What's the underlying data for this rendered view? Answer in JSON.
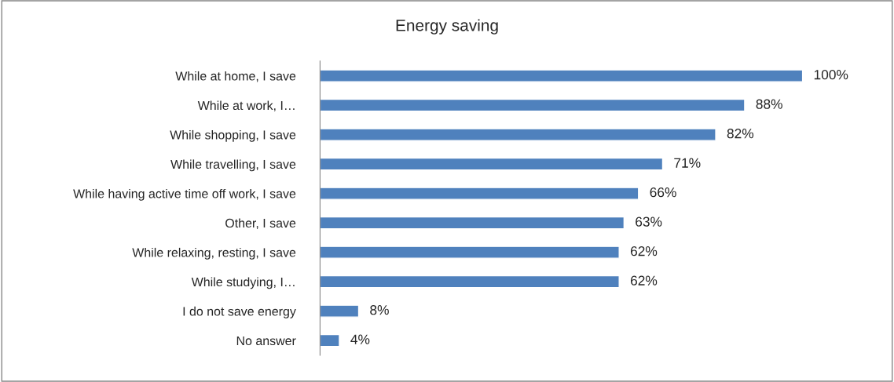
{
  "chart_data": {
    "type": "bar",
    "orientation": "horizontal",
    "title": "Energy saving",
    "categories": [
      "While at home, I save",
      "While at work, I…",
      "While shopping, I save",
      "While travelling, I save",
      "While having active time off work, I save",
      "Other, I save",
      "While relaxing, resting, I save",
      "While studying, I…",
      "I do not save energy",
      "No answer"
    ],
    "values": [
      100,
      88,
      82,
      71,
      66,
      63,
      62,
      62,
      8,
      4
    ],
    "value_labels": [
      "100%",
      "88%",
      "82%",
      "71%",
      "66%",
      "63%",
      "62%",
      "62%",
      "8%",
      "4%"
    ],
    "color": "#4f81bd",
    "grid": false,
    "legend": false
  }
}
